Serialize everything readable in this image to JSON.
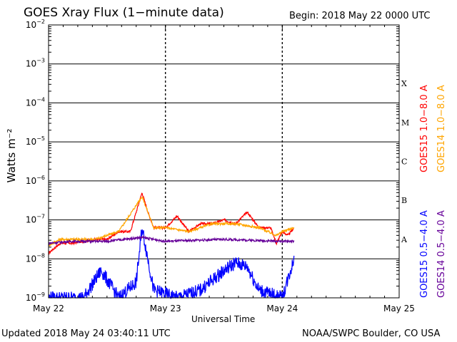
{
  "header": {
    "title": "GOES Xray Flux (1−minute data)",
    "begin": "Begin:  2018 May 22 0000 UTC"
  },
  "footer": {
    "updated": "Updated 2018 May 24 03:40:11 UTC",
    "credit": "NOAA/SWPC Boulder, CO USA"
  },
  "chart_data": {
    "type": "line",
    "title": "GOES Xray Flux (1−minute data)",
    "xlabel": "Universal Time",
    "ylabel": "Watts m⁻²",
    "y_scale": "log",
    "ylim": [
      1e-09,
      0.01
    ],
    "xlim_days": [
      0,
      3
    ],
    "x_ticks": [
      {
        "day": 0,
        "label": "May 22"
      },
      {
        "day": 1,
        "label": "May 23"
      },
      {
        "day": 2,
        "label": "May 24"
      },
      {
        "day": 3,
        "label": "May 25"
      }
    ],
    "y_ticks": [
      {
        "exp": -9,
        "label": "10",
        "sup": "−9"
      },
      {
        "exp": -8,
        "label": "10",
        "sup": "−8"
      },
      {
        "exp": -7,
        "label": "10",
        "sup": "−7"
      },
      {
        "exp": -6,
        "label": "10",
        "sup": "−6"
      },
      {
        "exp": -5,
        "label": "10",
        "sup": "−5"
      },
      {
        "exp": -4,
        "label": "10",
        "sup": "−4"
      },
      {
        "exp": -3,
        "label": "10",
        "sup": "−3"
      },
      {
        "exp": -2,
        "label": "10",
        "sup": "−2"
      }
    ],
    "flare_classes": [
      {
        "label": "A",
        "exp": -7.5
      },
      {
        "label": "B",
        "exp": -6.5
      },
      {
        "label": "C",
        "exp": -5.5
      },
      {
        "label": "M",
        "exp": -4.5
      },
      {
        "label": "X",
        "exp": -3.5
      }
    ],
    "series": [
      {
        "name": "GOES15 1.0−8.0 A",
        "color": "#ff0000",
        "points": [
          [
            0.0,
            -7.85
          ],
          [
            0.1,
            -7.6
          ],
          [
            0.2,
            -7.6
          ],
          [
            0.4,
            -7.5
          ],
          [
            0.5,
            -7.5
          ],
          [
            0.6,
            -7.3
          ],
          [
            0.7,
            -7.3
          ],
          [
            0.8,
            -6.3
          ],
          [
            0.85,
            -6.8
          ],
          [
            0.9,
            -7.2
          ],
          [
            1.0,
            -7.2
          ],
          [
            1.1,
            -6.9
          ],
          [
            1.2,
            -7.3
          ],
          [
            1.3,
            -7.1
          ],
          [
            1.4,
            -7.1
          ],
          [
            1.5,
            -7.0
          ],
          [
            1.6,
            -7.1
          ],
          [
            1.7,
            -6.8
          ],
          [
            1.8,
            -7.2
          ],
          [
            1.9,
            -7.2
          ],
          [
            1.95,
            -7.6
          ],
          [
            2.0,
            -7.3
          ],
          [
            2.05,
            -7.4
          ],
          [
            2.1,
            -7.2
          ]
        ]
      },
      {
        "name": "GOES14 1.0−8.0 A",
        "color": "#ffa500",
        "points": [
          [
            0.0,
            -7.65
          ],
          [
            0.1,
            -7.5
          ],
          [
            0.2,
            -7.5
          ],
          [
            0.4,
            -7.5
          ],
          [
            0.6,
            -7.3
          ],
          [
            0.8,
            -6.4
          ],
          [
            0.9,
            -7.2
          ],
          [
            1.0,
            -7.2
          ],
          [
            1.2,
            -7.3
          ],
          [
            1.4,
            -7.1
          ],
          [
            1.6,
            -7.1
          ],
          [
            1.8,
            -7.2
          ],
          [
            1.95,
            -7.4
          ],
          [
            2.0,
            -7.3
          ],
          [
            2.1,
            -7.2
          ]
        ]
      },
      {
        "name": "GOES15 0.5−4.0 A",
        "color": "#0000ff",
        "points": [
          [
            0.0,
            -9.0
          ],
          [
            0.3,
            -9.0
          ],
          [
            0.45,
            -8.3
          ],
          [
            0.6,
            -9.0
          ],
          [
            0.75,
            -8.6
          ],
          [
            0.8,
            -7.2
          ],
          [
            0.9,
            -8.8
          ],
          [
            1.1,
            -9.0
          ],
          [
            1.3,
            -8.8
          ],
          [
            1.5,
            -8.3
          ],
          [
            1.6,
            -8.1
          ],
          [
            1.7,
            -8.2
          ],
          [
            1.8,
            -8.8
          ],
          [
            2.0,
            -9.0
          ],
          [
            2.1,
            -8.0
          ]
        ]
      },
      {
        "name": "GOES14 0.5−4.0 A",
        "color": "#660099",
        "points": [
          [
            0.0,
            -7.6
          ],
          [
            0.2,
            -7.55
          ],
          [
            0.5,
            -7.55
          ],
          [
            0.8,
            -7.45
          ],
          [
            1.0,
            -7.55
          ],
          [
            1.5,
            -7.5
          ],
          [
            2.0,
            -7.55
          ],
          [
            2.1,
            -7.55
          ]
        ]
      }
    ]
  }
}
